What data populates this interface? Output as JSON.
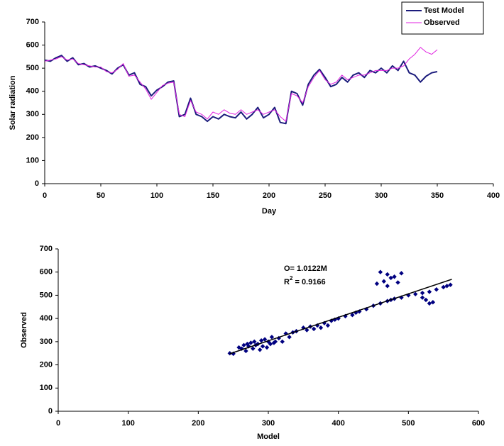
{
  "chart_data": [
    {
      "type": "line",
      "y_label": "Solar radiation",
      "x_label": "Day",
      "x": [
        0,
        5,
        10,
        15,
        20,
        25,
        30,
        35,
        40,
        45,
        50,
        55,
        60,
        65,
        70,
        75,
        80,
        85,
        90,
        95,
        100,
        105,
        110,
        115,
        120,
        125,
        130,
        135,
        140,
        145,
        150,
        155,
        160,
        165,
        170,
        175,
        180,
        185,
        190,
        195,
        200,
        205,
        210,
        215,
        220,
        225,
        230,
        235,
        240,
        245,
        250,
        255,
        260,
        265,
        270,
        275,
        280,
        285,
        290,
        295,
        300,
        305,
        310,
        315,
        320,
        325,
        330,
        335,
        340,
        345,
        350
      ],
      "series": [
        {
          "name": "Test Model",
          "color": "#1c1c7c",
          "width": 2,
          "values": [
            535,
            530,
            545,
            555,
            530,
            545,
            515,
            520,
            505,
            510,
            500,
            490,
            475,
            500,
            515,
            470,
            480,
            430,
            420,
            380,
            405,
            420,
            440,
            445,
            290,
            300,
            370,
            300,
            290,
            270,
            290,
            280,
            300,
            290,
            285,
            310,
            280,
            300,
            330,
            285,
            300,
            330,
            265,
            260,
            400,
            390,
            340,
            430,
            470,
            495,
            460,
            420,
            430,
            460,
            440,
            470,
            480,
            460,
            490,
            480,
            500,
            480,
            510,
            490,
            530,
            480,
            470,
            440,
            465,
            480,
            485
          ]
        },
        {
          "name": "Observed",
          "color": "#e020e0",
          "width": 1,
          "values": [
            530,
            535,
            540,
            550,
            535,
            540,
            520,
            515,
            510,
            505,
            505,
            485,
            480,
            495,
            520,
            465,
            470,
            440,
            410,
            365,
            395,
            425,
            435,
            440,
            300,
            290,
            360,
            310,
            300,
            280,
            310,
            300,
            320,
            305,
            300,
            320,
            300,
            310,
            320,
            300,
            310,
            320,
            290,
            270,
            390,
            380,
            350,
            420,
            460,
            490,
            450,
            430,
            440,
            470,
            450,
            460,
            470,
            470,
            480,
            490,
            490,
            490,
            500,
            500,
            510,
            540,
            560,
            590,
            570,
            560,
            580
          ]
        }
      ],
      "xlim": [
        0,
        400
      ],
      "xticks": [
        0,
        50,
        100,
        150,
        200,
        250,
        300,
        350,
        400
      ],
      "ylim": [
        0,
        700
      ],
      "yticks": [
        0,
        100,
        200,
        300,
        400,
        500,
        600,
        700
      ],
      "legend": "top-right"
    },
    {
      "type": "scatter",
      "y_label": "Observed",
      "x_label": "Model",
      "equation": "O= 1.0122M",
      "r2": [
        "R",
        "2",
        " = 0.9166"
      ],
      "color": "#000080",
      "x": [
        245,
        250,
        258,
        262,
        265,
        268,
        270,
        272,
        275,
        278,
        280,
        282,
        285,
        288,
        290,
        292,
        295,
        298,
        300,
        303,
        305,
        308,
        310,
        315,
        320,
        325,
        330,
        335,
        340,
        350,
        355,
        360,
        365,
        370,
        375,
        380,
        385,
        390,
        395,
        400,
        410,
        420,
        425,
        430,
        440,
        450,
        460,
        470,
        475,
        480,
        490,
        500,
        510,
        520,
        530,
        540,
        550,
        555,
        560,
        455,
        460,
        465,
        470,
        475,
        480,
        485,
        490,
        470,
        525,
        530,
        535,
        520
      ],
      "values": [
        250,
        248,
        275,
        270,
        285,
        260,
        290,
        280,
        295,
        270,
        300,
        285,
        290,
        265,
        305,
        280,
        310,
        275,
        300,
        290,
        320,
        295,
        300,
        315,
        300,
        335,
        320,
        340,
        345,
        360,
        350,
        365,
        355,
        370,
        360,
        380,
        370,
        390,
        395,
        400,
        410,
        415,
        425,
        430,
        440,
        455,
        465,
        475,
        480,
        485,
        490,
        500,
        505,
        510,
        515,
        525,
        535,
        540,
        545,
        550,
        600,
        560,
        590,
        575,
        580,
        555,
        595,
        540,
        480,
        465,
        470,
        490
      ],
      "trend_line": {
        "x": [
          245,
          562
        ],
        "y": [
          248,
          569
        ]
      },
      "xlim": [
        0,
        600
      ],
      "xticks": [
        0,
        100,
        200,
        300,
        400,
        500,
        600
      ],
      "ylim": [
        0,
        700
      ],
      "yticks": [
        0,
        100,
        200,
        300,
        400,
        500,
        600,
        700
      ]
    }
  ]
}
